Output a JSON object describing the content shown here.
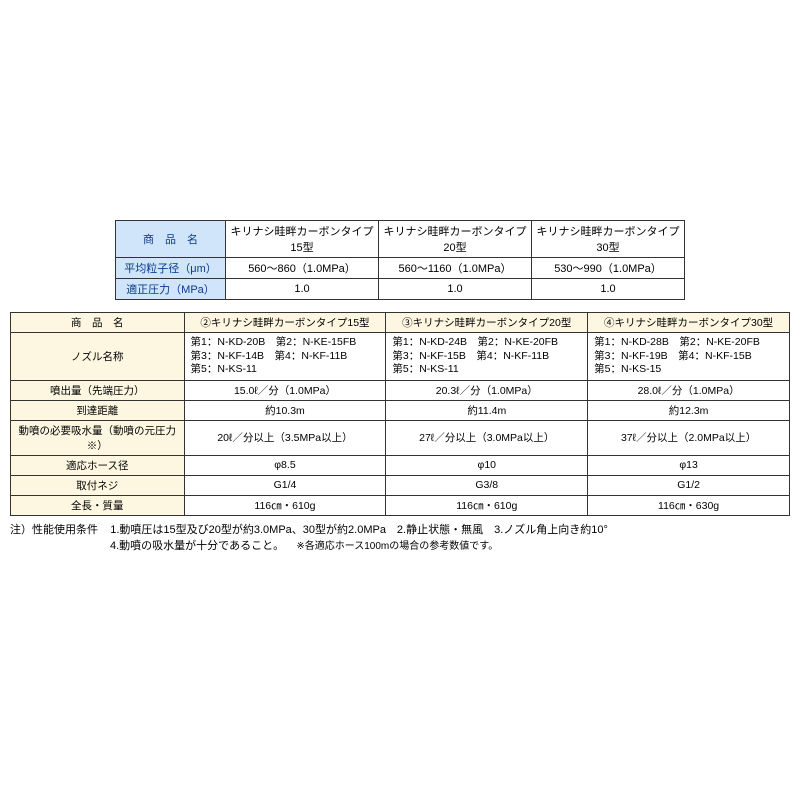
{
  "colors": {
    "header_blue_bg": "#d0e4fa",
    "header_blue_text": "#0a3a8a",
    "header_yellow_bg": "#fdf7e2",
    "border": "#333333"
  },
  "table1": {
    "col_widths": [
      "110px",
      "150px",
      "150px",
      "150px"
    ],
    "rows": [
      {
        "label": "商　品　名",
        "c1": "キリナシ畦畔カーボンタイプ15型",
        "c2": "キリナシ畦畔カーボンタイプ20型",
        "c3": "キリナシ畦畔カーボンタイプ30型"
      },
      {
        "label": "平均粒子径（μm）",
        "c1": "560～860（1.0MPa）",
        "c2": "560～1160（1.0MPa）",
        "c3": "530～990（1.0MPa）"
      },
      {
        "label": "適正圧力（MPa）",
        "c1": "1.0",
        "c2": "1.0",
        "c3": "1.0"
      }
    ]
  },
  "table2": {
    "col_widths": [
      "170px",
      "200px",
      "200px",
      "200px"
    ],
    "headers": {
      "label": "商　品　名",
      "c1": "②キリナシ畦畔カーボンタイプ15型",
      "c2": "③キリナシ畦畔カーボンタイプ20型",
      "c3": "④キリナシ畦畔カーボンタイプ30型"
    },
    "nozzle": {
      "label": "ノズル名称",
      "c1": "第1：N-KD-20B　第2：N-KE-15FB\n第3：N-KF-14B　第4：N-KF-11B\n第5：N-KS-11",
      "c2": "第1：N-KD-24B　第2：N-KE-20FB\n第3：N-KF-15B　第4：N-KF-11B\n第5：N-KS-11",
      "c3": "第1：N-KD-28B　第2：N-KE-20FB\n第3：N-KF-19B　第4：N-KF-15B\n第5：N-KS-15"
    },
    "rows": [
      {
        "label": "噴出量（先端圧力）",
        "c1": "15.0ℓ／分（1.0MPa）",
        "c2": "20.3ℓ／分（1.0MPa）",
        "c3": "28.0ℓ／分（1.0MPa）"
      },
      {
        "label": "到達距離",
        "c1": "約10.3m",
        "c2": "約11.4m",
        "c3": "約12.3m"
      },
      {
        "label": "動噴の必要吸水量（動噴の元圧力※）",
        "c1": "20ℓ／分以上（3.5MPa以上）",
        "c2": "27ℓ／分以上（3.0MPa以上）",
        "c3": "37ℓ／分以上（2.0MPa以上）"
      },
      {
        "label": "適応ホース径",
        "c1": "φ8.5",
        "c2": "φ10",
        "c3": "φ13"
      },
      {
        "label": "取付ネジ",
        "c1": "G1/4",
        "c2": "G3/8",
        "c3": "G1/2"
      },
      {
        "label": "全長・質量",
        "c1": "116㎝・610g",
        "c2": "116㎝・610g",
        "c3": "116㎝・630g"
      }
    ]
  },
  "notes": {
    "prefix": "注）性能使用条件",
    "line1": "1.動噴圧は15型及び20型が約3.0MPa、30型が約2.0MPa　2.静止状態・無風　3.ノズル角上向き約10°",
    "line2": "4.動噴の吸水量が十分であること。",
    "small": "※各適応ホース100mの場合の参考数値です。"
  }
}
